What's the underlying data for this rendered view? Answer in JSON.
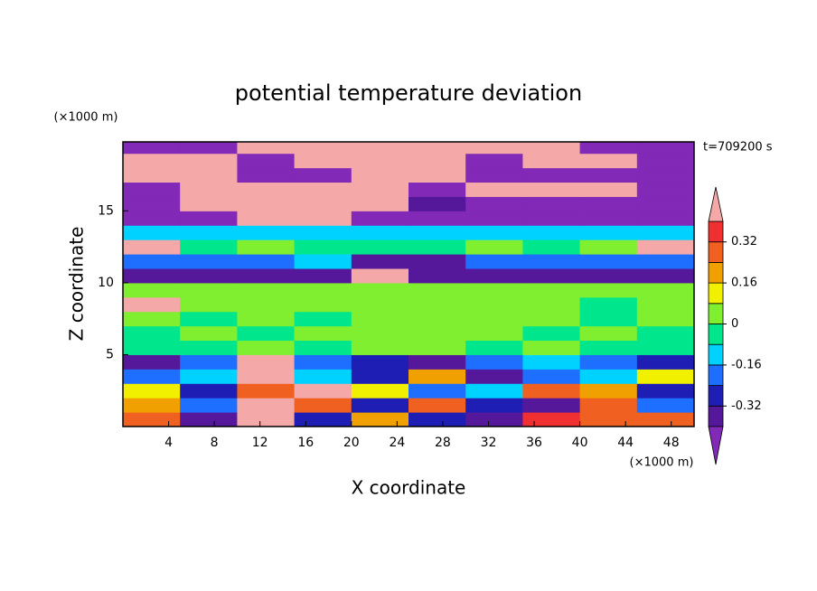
{
  "chart_data": {
    "type": "contour",
    "title": "potential temperature deviation",
    "x_label": "X coordinate",
    "y_label": "Z coordinate",
    "x_unit": "(×1000 m)",
    "y_unit": "(×1000 m)",
    "annotation": "t=709200 s",
    "xlim": [
      0,
      50
    ],
    "xticks": [
      4,
      8,
      12,
      16,
      20,
      24,
      28,
      32,
      36,
      40,
      44,
      48
    ],
    "ylim": [
      0,
      19.8
    ],
    "yticks": [
      5,
      10,
      15
    ],
    "x_edges": [
      0,
      5,
      10,
      15,
      20,
      25,
      30,
      35,
      40,
      45,
      50
    ],
    "y_edges": [
      0,
      1,
      2,
      3,
      4,
      5,
      6,
      7,
      8,
      9,
      10,
      11,
      12,
      13,
      14,
      15,
      16,
      17,
      18,
      19,
      19.8
    ],
    "levels": [
      -0.4,
      -0.32,
      -0.24,
      -0.16,
      -0.08,
      0,
      0.08,
      0.16,
      0.24,
      0.32,
      0.4
    ],
    "colors": [
      "#55189a",
      "#1e1eb4",
      "#1e6eff",
      "#00d2ff",
      "#00e68c",
      "#80ef30",
      "#f0f000",
      "#f0a000",
      "#f06020",
      "#f03030"
    ],
    "under_color": "#8229b8",
    "over_color": "#f5a8a8",
    "cbar_ticks": [
      -0.32,
      -0.16,
      0,
      0.16,
      0.32
    ],
    "values": [
      [
        0.3,
        -0.36,
        0.45,
        -0.3,
        0.2,
        -0.25,
        -0.36,
        0.35,
        0.25,
        0.3
      ],
      [
        0.2,
        -0.2,
        0.45,
        0.3,
        -0.3,
        0.25,
        -0.3,
        -0.36,
        0.3,
        -0.2
      ],
      [
        0.1,
        -0.3,
        0.3,
        0.45,
        0.1,
        -0.2,
        -0.1,
        0.3,
        0.2,
        -0.3
      ],
      [
        -0.2,
        -0.12,
        0.45,
        -0.12,
        -0.3,
        0.2,
        -0.36,
        -0.2,
        -0.1,
        0.1
      ],
      [
        -0.36,
        -0.2,
        0.45,
        -0.2,
        -0.3,
        -0.36,
        -0.2,
        -0.12,
        -0.2,
        -0.3
      ],
      [
        -0.04,
        -0.04,
        0.04,
        -0.04,
        0.04,
        0.04,
        -0.04,
        0.04,
        -0.04,
        -0.04
      ],
      [
        -0.04,
        0.04,
        -0.04,
        0.04,
        0.04,
        0.04,
        0.04,
        -0.04,
        0.04,
        -0.04
      ],
      [
        0.04,
        -0.04,
        0.04,
        -0.04,
        0.04,
        0.04,
        0.04,
        0.04,
        -0.04,
        0.04
      ],
      [
        0.45,
        0.04,
        0.04,
        0.04,
        0.04,
        0.04,
        0.04,
        0.04,
        -0.04,
        0.04
      ],
      [
        0.04,
        0.04,
        0.04,
        0.04,
        0.04,
        0.04,
        0.04,
        0.04,
        0.04,
        0.04
      ],
      [
        -0.36,
        -0.36,
        -0.36,
        -0.36,
        0.45,
        -0.36,
        -0.36,
        -0.36,
        -0.36,
        -0.36
      ],
      [
        -0.2,
        -0.2,
        -0.2,
        -0.12,
        -0.36,
        -0.36,
        -0.2,
        -0.2,
        -0.2,
        -0.2
      ],
      [
        0.45,
        -0.04,
        0.04,
        -0.04,
        -0.04,
        -0.04,
        0.04,
        -0.04,
        0.04,
        0.45
      ],
      [
        -0.12,
        -0.12,
        -0.12,
        -0.12,
        -0.12,
        -0.12,
        -0.12,
        -0.12,
        -0.12,
        -0.12
      ],
      [
        -0.44,
        -0.44,
        0.45,
        0.45,
        -0.44,
        -0.44,
        -0.44,
        -0.44,
        -0.44,
        -0.44
      ],
      [
        -0.44,
        0.45,
        0.45,
        0.45,
        0.45,
        -0.36,
        -0.44,
        -0.44,
        -0.44,
        -0.44
      ],
      [
        -0.44,
        0.45,
        0.45,
        0.45,
        0.45,
        -0.44,
        0.45,
        0.45,
        0.45,
        -0.44
      ],
      [
        0.45,
        0.45,
        -0.44,
        -0.44,
        0.45,
        0.45,
        -0.44,
        -0.44,
        -0.44,
        -0.44
      ],
      [
        0.45,
        0.45,
        -0.44,
        0.45,
        0.45,
        0.45,
        -0.44,
        0.45,
        0.45,
        -0.44
      ],
      [
        -0.44,
        -0.44,
        0.45,
        0.45,
        0.45,
        0.45,
        0.45,
        0.45,
        -0.44,
        -0.44
      ]
    ]
  }
}
